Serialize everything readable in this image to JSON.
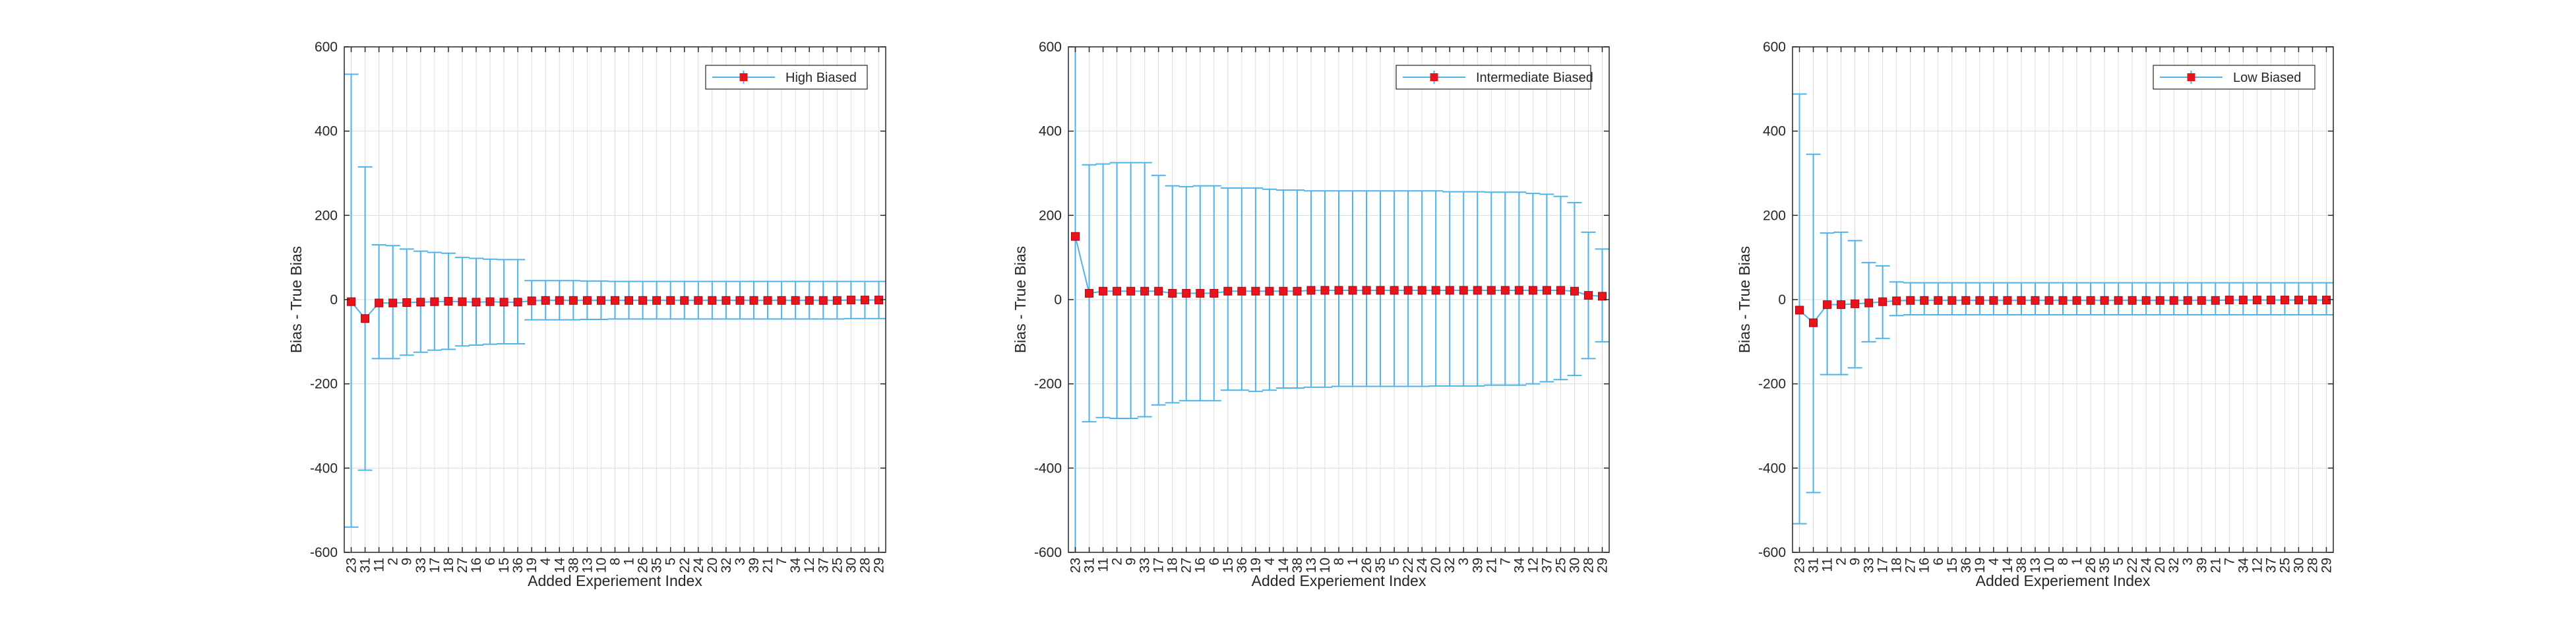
{
  "chart_data": [
    {
      "type": "errorbar",
      "legend": "High Biased",
      "legend_position": "top-right",
      "xlabel": "Added Experiement Index",
      "ylabel": "Bias - True Bias",
      "ylim": [
        -600,
        600
      ],
      "yticks": [
        -600,
        -400,
        -200,
        0,
        200,
        400,
        600
      ],
      "grid": true,
      "categories": [
        "23",
        "31",
        "11",
        "2",
        "9",
        "33",
        "17",
        "18",
        "27",
        "16",
        "6",
        "15",
        "36",
        "19",
        "4",
        "14",
        "38",
        "13",
        "10",
        "8",
        "1",
        "26",
        "35",
        "5",
        "22",
        "24",
        "20",
        "32",
        "3",
        "39",
        "21",
        "7",
        "34",
        "12",
        "37",
        "25",
        "30",
        "28",
        "29"
      ],
      "values": [
        -5,
        -45,
        -8,
        -8,
        -7,
        -6,
        -5,
        -4,
        -5,
        -6,
        -5,
        -6,
        -6,
        -3,
        -2,
        -2,
        -2,
        -2,
        -2,
        -2,
        -2,
        -2,
        -2,
        -2,
        -2,
        -2,
        -2,
        -2,
        -2,
        -2,
        -2,
        -2,
        -2,
        -2,
        -2,
        -2,
        -1,
        -1,
        -1
      ],
      "upper": [
        535,
        315,
        130,
        128,
        120,
        115,
        112,
        110,
        100,
        98,
        96,
        95,
        95,
        45,
        45,
        45,
        45,
        44,
        44,
        43,
        43,
        43,
        43,
        43,
        43,
        43,
        43,
        43,
        43,
        43,
        43,
        43,
        43,
        43,
        43,
        43,
        43,
        43,
        43
      ],
      "lower": [
        -540,
        -405,
        -140,
        -140,
        -132,
        -125,
        -120,
        -118,
        -110,
        -108,
        -106,
        -105,
        -105,
        -48,
        -48,
        -48,
        -48,
        -47,
        -47,
        -46,
        -46,
        -46,
        -46,
        -46,
        -46,
        -46,
        -46,
        -46,
        -46,
        -46,
        -46,
        -46,
        -46,
        -46,
        -46,
        -46,
        -45,
        -45,
        -45
      ]
    },
    {
      "type": "errorbar",
      "legend": "Intermediate Biased",
      "legend_position": "top-right",
      "xlabel": "Added Experiement Index",
      "ylabel": "Bias - True Bias",
      "ylim": [
        -600,
        600
      ],
      "yticks": [
        -600,
        -400,
        -200,
        0,
        200,
        400,
        600
      ],
      "grid": true,
      "categories": [
        "23",
        "31",
        "11",
        "2",
        "9",
        "33",
        "17",
        "18",
        "27",
        "16",
        "6",
        "15",
        "36",
        "19",
        "4",
        "14",
        "38",
        "13",
        "10",
        "8",
        "1",
        "26",
        "35",
        "5",
        "22",
        "24",
        "20",
        "32",
        "3",
        "39",
        "21",
        "7",
        "34",
        "12",
        "37",
        "25",
        "30",
        "28",
        "29"
      ],
      "values": [
        150,
        15,
        20,
        20,
        20,
        20,
        20,
        15,
        15,
        15,
        15,
        20,
        20,
        20,
        20,
        20,
        20,
        22,
        22,
        22,
        22,
        22,
        22,
        22,
        22,
        22,
        22,
        22,
        22,
        22,
        22,
        22,
        22,
        22,
        22,
        22,
        20,
        10,
        8
      ],
      "upper": [
        600,
        320,
        322,
        325,
        325,
        325,
        295,
        270,
        268,
        270,
        270,
        265,
        265,
        265,
        262,
        260,
        260,
        258,
        258,
        258,
        258,
        258,
        258,
        258,
        258,
        258,
        258,
        256,
        256,
        256,
        255,
        255,
        255,
        252,
        250,
        245,
        230,
        160,
        120
      ],
      "lower": [
        -600,
        -290,
        -280,
        -282,
        -282,
        -278,
        -250,
        -245,
        -240,
        -240,
        -240,
        -215,
        -215,
        -218,
        -215,
        -210,
        -210,
        -208,
        -208,
        -206,
        -206,
        -206,
        -206,
        -206,
        -206,
        -206,
        -205,
        -205,
        -205,
        -205,
        -203,
        -203,
        -203,
        -200,
        -195,
        -190,
        -180,
        -140,
        -100
      ]
    },
    {
      "type": "errorbar",
      "legend": "Low Biased",
      "legend_position": "top-right",
      "xlabel": "Added Experiement Index",
      "ylabel": "Bias - True Bias",
      "ylim": [
        -600,
        600
      ],
      "yticks": [
        -600,
        -400,
        -200,
        0,
        200,
        400,
        600
      ],
      "grid": true,
      "categories": [
        "23",
        "31",
        "11",
        "2",
        "9",
        "33",
        "17",
        "18",
        "27",
        "16",
        "6",
        "15",
        "36",
        "19",
        "4",
        "14",
        "38",
        "13",
        "10",
        "8",
        "1",
        "26",
        "35",
        "5",
        "22",
        "24",
        "20",
        "32",
        "3",
        "39",
        "21",
        "7",
        "34",
        "12",
        "37",
        "25",
        "30",
        "28",
        "29"
      ],
      "values": [
        -25,
        -55,
        -12,
        -12,
        -10,
        -8,
        -5,
        -3,
        -2,
        -2,
        -2,
        -2,
        -2,
        -2,
        -2,
        -2,
        -2,
        -2,
        -2,
        -2,
        -2,
        -2,
        -2,
        -2,
        -2,
        -2,
        -2,
        -2,
        -2,
        -2,
        -2,
        -1,
        -1,
        -1,
        -1,
        -1,
        -1,
        -1,
        -1
      ],
      "upper": [
        488,
        345,
        158,
        160,
        140,
        88,
        80,
        42,
        40,
        40,
        40,
        40,
        40,
        40,
        40,
        40,
        40,
        40,
        40,
        40,
        40,
        40,
        40,
        40,
        40,
        40,
        40,
        40,
        40,
        40,
        40,
        40,
        40,
        40,
        40,
        40,
        40,
        40,
        40
      ],
      "lower": [
        -532,
        -458,
        -178,
        -178,
        -162,
        -100,
        -92,
        -38,
        -36,
        -36,
        -36,
        -36,
        -36,
        -36,
        -36,
        -36,
        -36,
        -36,
        -36,
        -36,
        -36,
        -36,
        -36,
        -36,
        -36,
        -36,
        -36,
        -36,
        -36,
        -36,
        -36,
        -36,
        -36,
        -36,
        -36,
        -36,
        -36,
        -36,
        -36
      ]
    }
  ],
  "colors": {
    "errorbar": "#4fb3e8",
    "marker": "#e8141c",
    "grid": "#dcdcdc",
    "axes": "#262626"
  }
}
